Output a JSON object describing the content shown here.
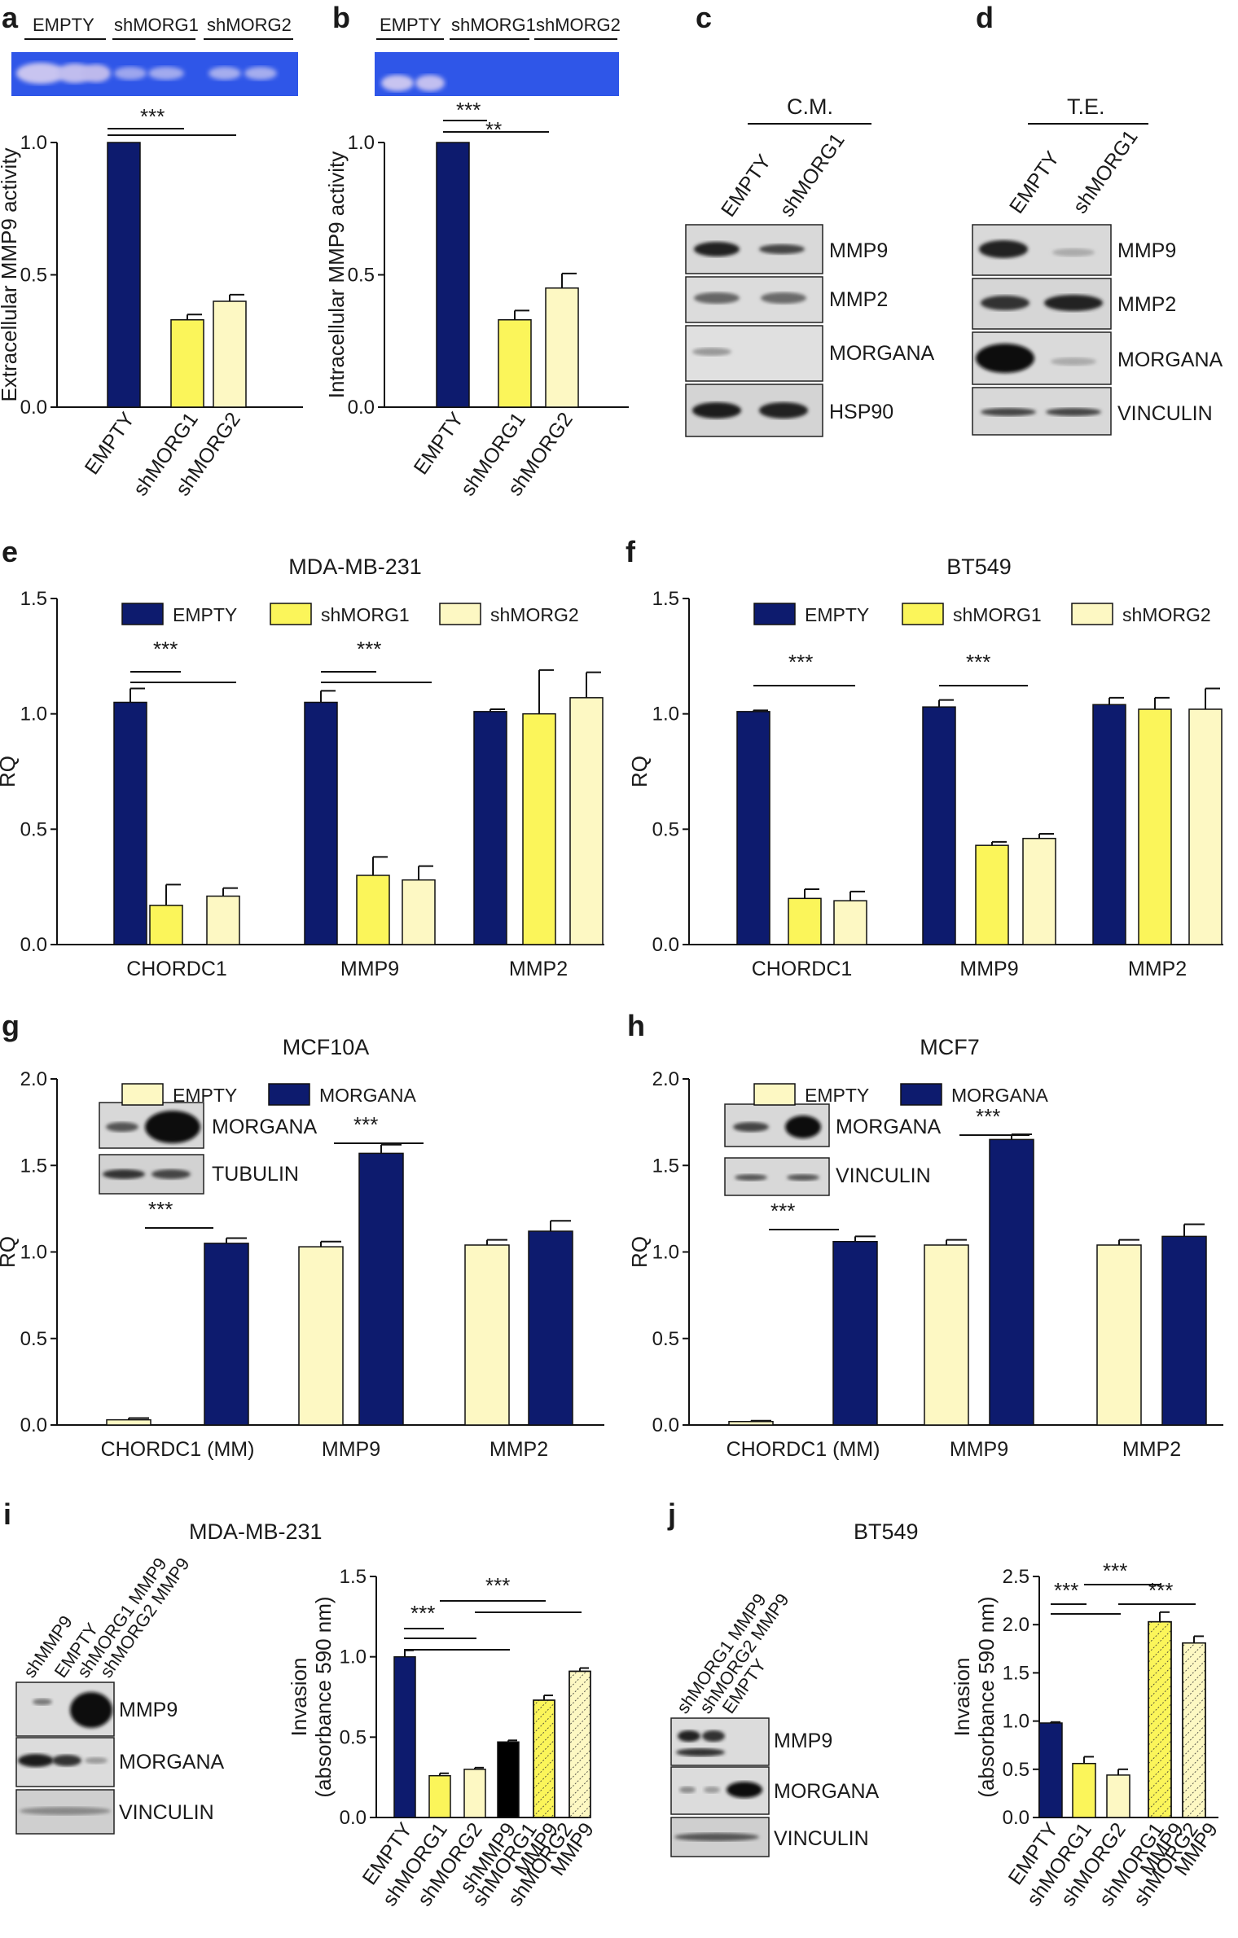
{
  "colors": {
    "empty": "#0d1b6e",
    "shmorg1": "#fbf55a",
    "shmorg2": "#fdf8c3",
    "mmp9": "#000000",
    "gelblue": "#2b4fe0",
    "blot": "#dddddd"
  },
  "panels": {
    "a": {
      "label": "a",
      "gel_lanes": [
        "EMPTY",
        "shMORG1",
        "shMORG2"
      ],
      "sig": [
        "***"
      ]
    },
    "b": {
      "label": "b",
      "gel_lanes": [
        "EMPTY",
        "shMORG1",
        "shMORG2"
      ],
      "sig": [
        "***",
        "**"
      ]
    },
    "c": {
      "label": "c",
      "header": "C.M.",
      "lanes": [
        "EMPTY",
        "shMORG1"
      ],
      "bands": [
        "MMP9",
        "MMP2",
        "MORGANA",
        "HSP90"
      ]
    },
    "d": {
      "label": "d",
      "header": "T.E.",
      "lanes": [
        "EMPTY",
        "shMORG1"
      ],
      "bands": [
        "MMP9",
        "MMP2",
        "MORGANA",
        "VINCULIN"
      ]
    },
    "e": {
      "label": "e",
      "sig": [
        "***",
        "***"
      ],
      "legend": [
        "EMPTY",
        "shMORG1",
        "shMORG2"
      ]
    },
    "f": {
      "label": "f",
      "sig": [
        "***",
        "***"
      ],
      "legend": [
        "EMPTY",
        "shMORG1",
        "shMORG2"
      ]
    },
    "g": {
      "label": "g",
      "sig": [
        "***",
        "***"
      ],
      "legend": [
        "EMPTY",
        "MORGANA"
      ],
      "inset_bands": [
        "MORGANA",
        "TUBULIN"
      ]
    },
    "h": {
      "label": "h",
      "sig": [
        "***",
        "***"
      ],
      "legend": [
        "EMPTY",
        "MORGANA"
      ],
      "inset_bands": [
        "MORGANA",
        "VINCULIN"
      ]
    },
    "i": {
      "label": "i",
      "title": "MDA-MB-231",
      "lanes": [
        "shMMP9",
        "EMPTY",
        "shMORG1 MMP9",
        "shMORG2 MMP9"
      ],
      "bands": [
        "MMP9",
        "MORGANA",
        "VINCULIN"
      ],
      "sig": [
        "***",
        "***"
      ]
    },
    "j": {
      "label": "j",
      "title": "BT549",
      "lanes": [
        "shMORG1 MMP9",
        "shMORG2 MMP9",
        "EMPTY"
      ],
      "bands": [
        "MMP9",
        "MORGANA",
        "VINCULIN"
      ],
      "sig": [
        "***",
        "***",
        "***"
      ]
    }
  },
  "chart_data": [
    {
      "id": "a",
      "type": "bar",
      "title": "",
      "ylabel": "Extracellular MMP9 activity",
      "ylim": [
        0,
        1.0
      ],
      "yticks": [
        "0.0",
        "0.5",
        "1.0"
      ],
      "categories": [
        "EMPTY",
        "shMORG1",
        "shMORG2"
      ],
      "values": [
        1.0,
        0.33,
        0.4
      ],
      "errors": [
        0,
        0.02,
        0.025
      ]
    },
    {
      "id": "b",
      "type": "bar",
      "title": "",
      "ylabel": "Intracellular MMP9 activity",
      "ylim": [
        0,
        1.0
      ],
      "yticks": [
        "0.0",
        "0.5",
        "1.0"
      ],
      "categories": [
        "EMPTY",
        "shMORG1",
        "shMORG2"
      ],
      "values": [
        1.0,
        0.33,
        0.45
      ],
      "errors": [
        0,
        0.035,
        0.055
      ]
    },
    {
      "id": "e",
      "type": "bar",
      "title": "MDA-MB-231",
      "ylabel": "RQ",
      "ylim": [
        0,
        1.5
      ],
      "yticks": [
        "0.0",
        "0.5",
        "1.0",
        "1.5"
      ],
      "categories": [
        "CHORDC1",
        "MMP9",
        "MMP2"
      ],
      "series": [
        {
          "name": "EMPTY",
          "values": [
            1.05,
            1.05,
            1.01
          ],
          "errors": [
            0.06,
            0.05,
            0.01
          ]
        },
        {
          "name": "shMORG1",
          "values": [
            0.17,
            0.3,
            1.0
          ],
          "errors": [
            0.09,
            0.08,
            0.19
          ]
        },
        {
          "name": "shMORG2",
          "values": [
            0.21,
            0.28,
            1.07
          ],
          "errors": [
            0.035,
            0.06,
            0.11
          ]
        }
      ]
    },
    {
      "id": "f",
      "type": "bar",
      "title": "BT549",
      "ylabel": "RQ",
      "ylim": [
        0,
        1.5
      ],
      "yticks": [
        "0.0",
        "0.5",
        "1.0",
        "1.5"
      ],
      "categories": [
        "CHORDC1",
        "MMP9",
        "MMP2"
      ],
      "series": [
        {
          "name": "EMPTY",
          "values": [
            1.01,
            1.03,
            1.04
          ],
          "errors": [
            0.005,
            0.03,
            0.03
          ]
        },
        {
          "name": "shMORG1",
          "values": [
            0.2,
            0.43,
            1.02
          ],
          "errors": [
            0.04,
            0.015,
            0.05
          ]
        },
        {
          "name": "shMORG2",
          "values": [
            0.19,
            0.46,
            1.02
          ],
          "errors": [
            0.04,
            0.02,
            0.09
          ]
        }
      ]
    },
    {
      "id": "g",
      "type": "bar",
      "title": "MCF10A",
      "ylabel": "RQ",
      "ylim": [
        0,
        2.0
      ],
      "yticks": [
        "0.0",
        "0.5",
        "1.0",
        "1.5",
        "2.0"
      ],
      "categories": [
        "CHORDC1 (MM)",
        "MMP9",
        "MMP2"
      ],
      "series": [
        {
          "name": "EMPTY",
          "values": [
            0.03,
            1.03,
            1.04
          ],
          "errors": [
            0.01,
            0.03,
            0.03
          ]
        },
        {
          "name": "MORGANA",
          "values": [
            1.05,
            1.57,
            1.12
          ],
          "errors": [
            0.03,
            0.05,
            0.06
          ]
        }
      ]
    },
    {
      "id": "h",
      "type": "bar",
      "title": "MCF7",
      "ylabel": "RQ",
      "ylim": [
        0,
        2.0
      ],
      "yticks": [
        "0.0",
        "0.5",
        "1.0",
        "1.5",
        "2.0"
      ],
      "categories": [
        "CHORDC1 (MM)",
        "MMP9",
        "MMP2"
      ],
      "series": [
        {
          "name": "EMPTY",
          "values": [
            0.02,
            1.04,
            1.04
          ],
          "errors": [
            0.005,
            0.03,
            0.03
          ]
        },
        {
          "name": "MORGANA",
          "values": [
            1.06,
            1.65,
            1.09
          ],
          "errors": [
            0.03,
            0.03,
            0.07
          ]
        }
      ]
    },
    {
      "id": "i",
      "type": "bar",
      "title": "MDA-MB-231",
      "ylabel": "Invasion (absorbance 590 nm)",
      "ylim": [
        0,
        1.5
      ],
      "yticks": [
        "0.0",
        "0.5",
        "1.0",
        "1.5"
      ],
      "categories": [
        "EMPTY",
        "shMORG1",
        "shMORG2",
        "shMMP9",
        "shMORG1 MMP9",
        "shMORG2 MMP9"
      ],
      "values": [
        1.0,
        0.26,
        0.3,
        0.47,
        0.73,
        0.91
      ],
      "errors": [
        0.04,
        0.015,
        0.01,
        0.01,
        0.03,
        0.02
      ]
    },
    {
      "id": "j",
      "type": "bar",
      "title": "BT549",
      "ylabel": "Invasion (absorbance 590 nm)",
      "ylim": [
        0,
        2.5
      ],
      "yticks": [
        "0.0",
        "0.5",
        "1.0",
        "1.5",
        "2.0",
        "2.5"
      ],
      "categories": [
        "EMPTY",
        "shMORG1",
        "shMORG2",
        "shMORG1 MMP9",
        "shMORG2 MMP9"
      ],
      "values": [
        0.98,
        0.56,
        0.44,
        2.03,
        1.81
      ],
      "errors": [
        0.01,
        0.07,
        0.06,
        0.1,
        0.07
      ]
    }
  ]
}
